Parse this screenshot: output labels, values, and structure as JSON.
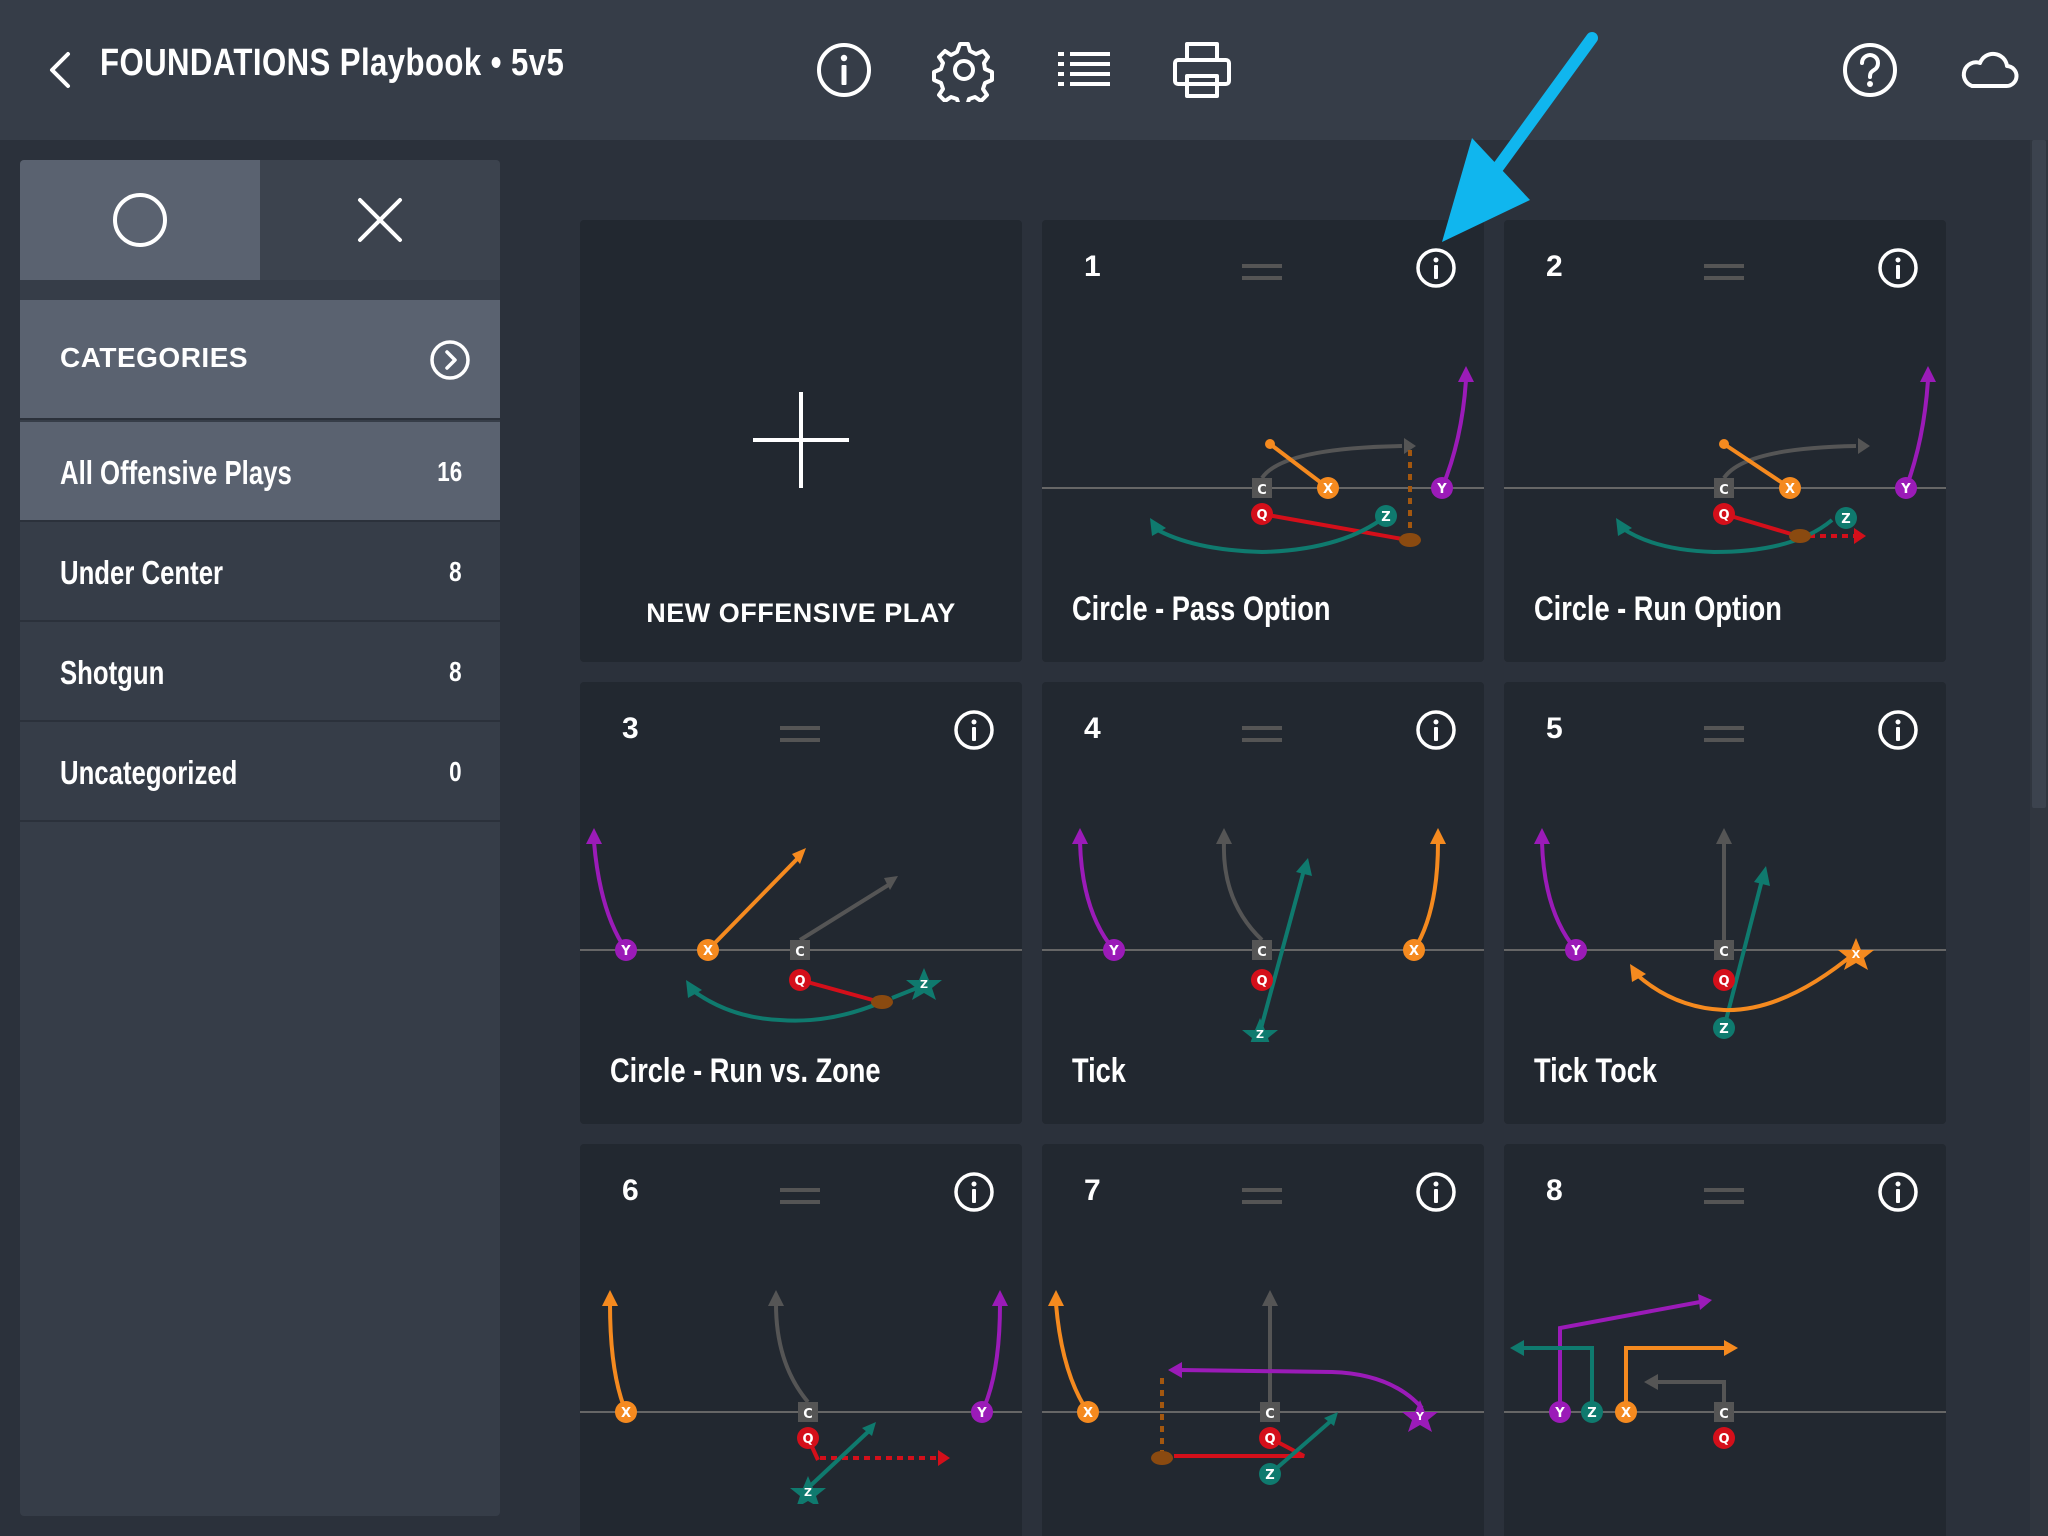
{
  "header": {
    "title": "FOUNDATIONS Playbook • 5v5",
    "icons": [
      "back-chevron-icon",
      "info-icon",
      "settings-gear-icon",
      "list-icon",
      "print-icon",
      "help-icon",
      "cloud-icon"
    ]
  },
  "sidebar": {
    "categories_label": "CATEGORIES",
    "items": [
      {
        "label": "All Offensive Plays",
        "count": "16"
      },
      {
        "label": "Under Center",
        "count": "8"
      },
      {
        "label": "Shotgun",
        "count": "8"
      },
      {
        "label": "Uncategorized",
        "count": "0"
      }
    ]
  },
  "plays": {
    "new_label": "NEW OFFENSIVE PLAY",
    "cards": [
      {
        "number": "1",
        "name": "Circle - Pass Option"
      },
      {
        "number": "2",
        "name": "Circle - Run Option"
      },
      {
        "number": "3",
        "name": "Circle - Run vs. Zone"
      },
      {
        "number": "4",
        "name": "Tick"
      },
      {
        "number": "5",
        "name": "Tick Tock"
      },
      {
        "number": "6",
        "name": ""
      },
      {
        "number": "7",
        "name": ""
      },
      {
        "number": "8",
        "name": ""
      }
    ]
  },
  "players": {
    "center": "C",
    "quarterback": "Q",
    "x": "X",
    "y": "Y",
    "z": "Z"
  },
  "colors": {
    "topbar": "#363d48",
    "background": "#2b313b",
    "card": "#222830",
    "active": "#5a6270",
    "orange": "#f58a1f",
    "purple": "#9b1bb8",
    "teal": "#0f7a6e",
    "red": "#d40f1a",
    "gray": "#555555",
    "hint_arrow": "#10b6ee"
  }
}
